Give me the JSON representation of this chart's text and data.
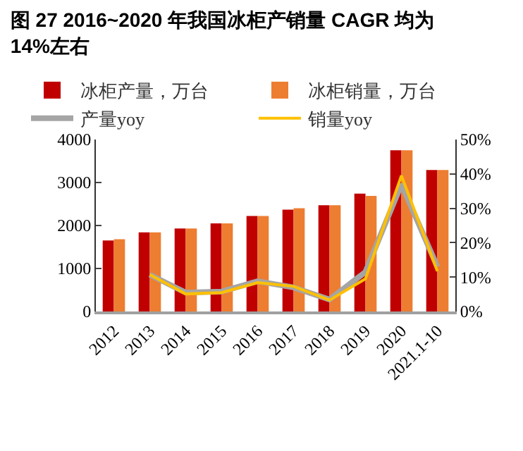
{
  "chart_data": {
    "type": "bar",
    "title": "图 27 2016~2020 年我国冰柜产销量 CAGR 均为 14%左右",
    "categories": [
      "2012",
      "2013",
      "2014",
      "2015",
      "2016",
      "2017",
      "2018",
      "2019",
      "2020",
      "2021.1-10"
    ],
    "series": [
      {
        "name": "冰柜产量，万台",
        "color": "#c00000",
        "values": [
          1650,
          1840,
          1930,
          2050,
          2220,
          2370,
          2470,
          2740,
          3750,
          3290
        ]
      },
      {
        "name": "冰柜销量，万台",
        "color": "#ed7d31",
        "values": [
          1680,
          1840,
          1930,
          2050,
          2220,
          2400,
          2470,
          2690,
          3750,
          3290
        ]
      },
      {
        "name": "产量yoy",
        "type": "line",
        "axis": "y2",
        "color": "#a5a5a5",
        "values": [
          null,
          10.7,
          5.5,
          5.8,
          8.8,
          7.0,
          3.5,
          11.5,
          37,
          13
        ]
      },
      {
        "name": "销量yoy",
        "type": "line",
        "axis": "y2",
        "color": "#ffc000",
        "values": [
          null,
          10.7,
          5.1,
          5.5,
          8.4,
          7.3,
          3.3,
          9.5,
          39.5,
          11.7
        ]
      }
    ],
    "ylim": [
      0,
      4000
    ],
    "yticks": [
      0,
      1000,
      2000,
      3000,
      4000
    ],
    "y2lim": [
      0,
      50
    ],
    "y2ticks": [
      {
        "value": 0,
        "label": "0%"
      },
      {
        "value": 10,
        "label": "10%"
      },
      {
        "value": 20,
        "label": "20%"
      },
      {
        "value": 30,
        "label": "30%"
      },
      {
        "value": 40,
        "label": "40%"
      },
      {
        "value": 50,
        "label": "50%"
      }
    ],
    "legend": "top",
    "grid": false,
    "marker": "none",
    "line_style": "solid"
  }
}
